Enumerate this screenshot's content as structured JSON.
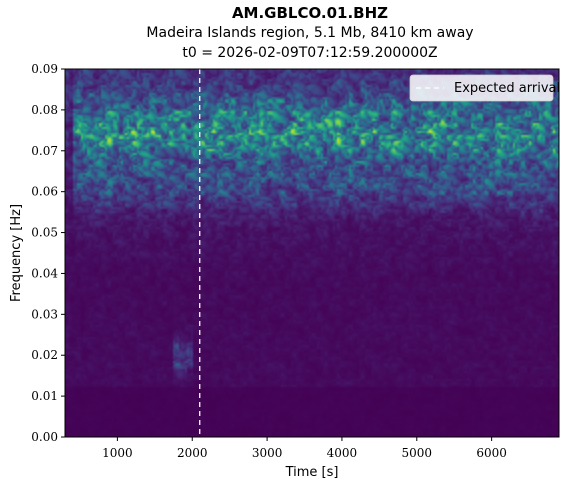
{
  "chart_data": {
    "type": "heatmap",
    "title": "AM.GBLCO.01.BHZ",
    "subtitle": "Madeira Islands region, 5.1 Mb, 8410 km away",
    "subtitle2": "t0 = 2026-02-09T07:12:59.200000Z",
    "xlabel": "Time [s]",
    "ylabel": "Frequency [Hz]",
    "xlim": [
      300,
      6900
    ],
    "ylim": [
      0.0,
      0.09
    ],
    "xticks": [
      1000,
      2000,
      3000,
      4000,
      5000,
      6000
    ],
    "xtick_labels": [
      "1000",
      "2000",
      "3000",
      "4000",
      "5000",
      "6000"
    ],
    "yticks": [
      0.0,
      0.01,
      0.02,
      0.03,
      0.04,
      0.05,
      0.06,
      0.07,
      0.08,
      0.09
    ],
    "ytick_labels": [
      "0.00",
      "0.01",
      "0.02",
      "0.03",
      "0.04",
      "0.05",
      "0.06",
      "0.07",
      "0.08",
      "0.09"
    ],
    "colormap": "viridis",
    "expected_arrival_s": 2100,
    "legend": {
      "label": "Expected arrival",
      "position": "top-right",
      "line_style": "dashed",
      "color": "#ffffff"
    },
    "energy_bands": [
      {
        "freq_hz": 0.073,
        "time_range": [
          400,
          6900
        ],
        "intensity": "high"
      },
      {
        "freq_hz": 0.08,
        "time_range": [
          400,
          6900
        ],
        "intensity": "medium"
      },
      {
        "freq_hz": 0.062,
        "time_range": [
          400,
          6900
        ],
        "intensity": "medium"
      },
      {
        "freq_hz": 0.02,
        "time_range": [
          1750,
          2000
        ],
        "intensity": "medium"
      }
    ]
  }
}
